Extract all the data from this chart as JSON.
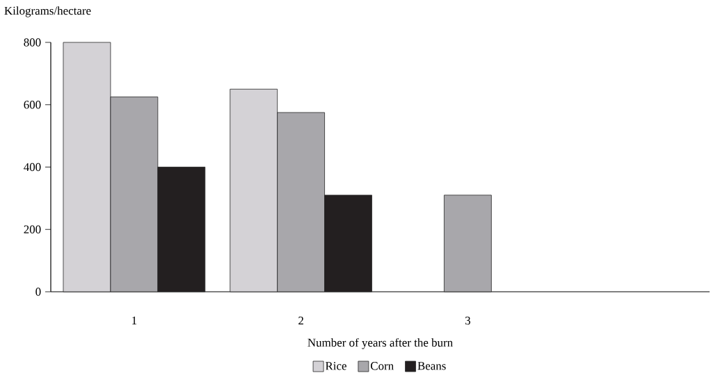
{
  "chart_data": {
    "type": "bar",
    "ylabel": "Kilograms/hectare",
    "xlabel": "Number of years after the burn",
    "categories": [
      "1",
      "2",
      "3",
      null
    ],
    "series": [
      {
        "name": "Rice",
        "color": "#d4d2d6",
        "values": [
          800,
          650,
          null,
          null
        ]
      },
      {
        "name": "Corn",
        "color": "#a8a7ab",
        "values": [
          625,
          575,
          310,
          null
        ]
      },
      {
        "name": "Beans",
        "color": "#231f20",
        "values": [
          400,
          310,
          null,
          null
        ]
      }
    ],
    "ylim": [
      0,
      800
    ],
    "yticks": [
      0,
      200,
      400,
      600,
      800
    ],
    "legend": "bottom"
  }
}
